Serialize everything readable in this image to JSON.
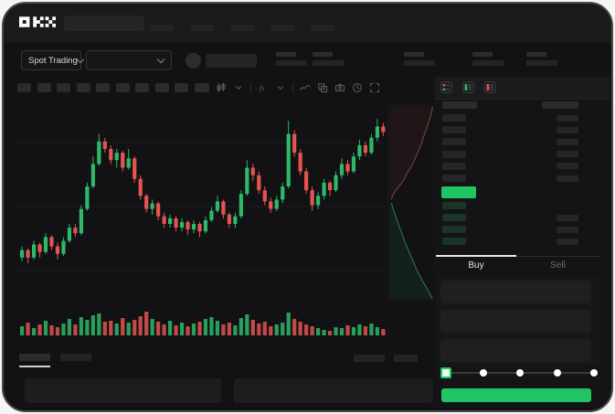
{
  "brand": {
    "name": "OKX"
  },
  "colors": {
    "up_green": "#2db969",
    "down_red": "#e25550",
    "accent_green": "#21c462",
    "bid_row_bg": "#1b3427",
    "ask_depth_line": "#7e4744",
    "bid_depth_line": "#2f7a5e"
  },
  "header": {
    "nav_items": 5
  },
  "subheader": {
    "market_selector_label": "Spot Trading",
    "stat_groups": 5
  },
  "chart_toolbar": {
    "timeframe_buttons": 10,
    "icons": [
      "candles",
      "chevron-down",
      "indicators",
      "chevron-down",
      "wave",
      "compare",
      "camera",
      "history",
      "fullscreen"
    ]
  },
  "chart_data": {
    "type": "candlestick",
    "title": "",
    "axes_labeled": false,
    "grid": "faint-horizontal",
    "price_scale": {
      "min": 0,
      "max": 100
    },
    "candles_format": [
      "open",
      "close",
      "high",
      "low",
      "volume"
    ],
    "candles": [
      [
        22,
        26,
        28,
        20,
        10
      ],
      [
        26,
        22,
        27,
        19,
        14
      ],
      [
        22,
        29,
        31,
        21,
        8
      ],
      [
        29,
        25,
        30,
        22,
        12
      ],
      [
        25,
        33,
        35,
        24,
        16
      ],
      [
        33,
        28,
        34,
        26,
        11
      ],
      [
        28,
        24,
        30,
        21,
        9
      ],
      [
        24,
        31,
        33,
        23,
        13
      ],
      [
        31,
        38,
        40,
        30,
        18
      ],
      [
        38,
        35,
        40,
        33,
        12
      ],
      [
        35,
        48,
        50,
        34,
        20
      ],
      [
        48,
        60,
        62,
        47,
        17
      ],
      [
        60,
        72,
        76,
        59,
        22
      ],
      [
        72,
        84,
        88,
        71,
        24
      ],
      [
        84,
        80,
        86,
        78,
        15
      ],
      [
        80,
        74,
        82,
        72,
        16
      ],
      [
        74,
        78,
        80,
        70,
        13
      ],
      [
        78,
        70,
        79,
        68,
        19
      ],
      [
        70,
        75,
        80,
        69,
        14
      ],
      [
        75,
        64,
        76,
        62,
        17
      ],
      [
        64,
        55,
        66,
        53,
        21
      ],
      [
        55,
        48,
        56,
        46,
        26
      ],
      [
        48,
        51,
        53,
        45,
        18
      ],
      [
        51,
        44,
        52,
        42,
        15
      ],
      [
        44,
        40,
        46,
        38,
        12
      ],
      [
        40,
        43,
        45,
        38,
        16
      ],
      [
        43,
        38,
        44,
        36,
        11
      ],
      [
        38,
        41,
        43,
        36,
        14
      ],
      [
        41,
        37,
        42,
        34,
        10
      ],
      [
        37,
        40,
        42,
        35,
        13
      ],
      [
        40,
        36,
        41,
        33,
        15
      ],
      [
        36,
        42,
        44,
        35,
        18
      ],
      [
        42,
        47,
        49,
        41,
        20
      ],
      [
        47,
        52,
        55,
        46,
        16
      ],
      [
        52,
        45,
        53,
        43,
        12
      ],
      [
        45,
        40,
        46,
        38,
        14
      ],
      [
        40,
        44,
        46,
        38,
        11
      ],
      [
        44,
        56,
        58,
        43,
        19
      ],
      [
        56,
        70,
        74,
        55,
        23
      ],
      [
        70,
        66,
        72,
        63,
        17
      ],
      [
        66,
        58,
        68,
        56,
        13
      ],
      [
        58,
        52,
        60,
        50,
        15
      ],
      [
        52,
        48,
        54,
        46,
        10
      ],
      [
        48,
        53,
        55,
        47,
        12
      ],
      [
        53,
        60,
        62,
        51,
        14
      ],
      [
        60,
        88,
        95,
        59,
        25
      ],
      [
        88,
        78,
        90,
        76,
        18
      ],
      [
        78,
        68,
        80,
        66,
        15
      ],
      [
        68,
        58,
        70,
        56,
        12
      ],
      [
        58,
        50,
        60,
        47,
        10
      ],
      [
        50,
        55,
        57,
        48,
        8
      ],
      [
        55,
        62,
        64,
        53,
        6
      ],
      [
        62,
        58,
        63,
        55,
        5
      ],
      [
        58,
        66,
        68,
        57,
        9
      ],
      [
        66,
        72,
        75,
        64,
        8
      ],
      [
        72,
        68,
        74,
        66,
        11
      ],
      [
        68,
        76,
        78,
        67,
        9
      ],
      [
        76,
        82,
        85,
        74,
        12
      ],
      [
        82,
        78,
        84,
        76,
        10
      ],
      [
        78,
        86,
        88,
        77,
        13
      ],
      [
        86,
        92,
        96,
        84,
        9
      ],
      [
        92,
        89,
        94,
        87,
        7
      ]
    ],
    "depth": {
      "asks": [
        [
          0.97,
          0.0
        ],
        [
          0.92,
          0.05
        ],
        [
          0.86,
          0.09
        ],
        [
          0.8,
          0.13
        ],
        [
          0.74,
          0.17
        ],
        [
          0.7,
          0.2
        ],
        [
          0.62,
          0.24
        ],
        [
          0.55,
          0.28
        ],
        [
          0.48,
          0.31
        ],
        [
          0.4,
          0.34
        ],
        [
          0.33,
          0.37
        ],
        [
          0.25,
          0.4
        ],
        [
          0.14,
          0.43
        ],
        [
          0.06,
          0.46
        ],
        [
          0.03,
          0.48
        ]
      ],
      "bids": [
        [
          0.03,
          0.5
        ],
        [
          0.08,
          0.54
        ],
        [
          0.14,
          0.58
        ],
        [
          0.2,
          0.62
        ],
        [
          0.27,
          0.66
        ],
        [
          0.33,
          0.7
        ],
        [
          0.4,
          0.74
        ],
        [
          0.48,
          0.78
        ],
        [
          0.55,
          0.82
        ],
        [
          0.63,
          0.86
        ],
        [
          0.72,
          0.9
        ],
        [
          0.82,
          0.94
        ],
        [
          0.9,
          0.97
        ],
        [
          0.96,
          1.0
        ]
      ]
    }
  },
  "order_book": {
    "view_icons": [
      "orderbook-split",
      "orderbook-bids",
      "orderbook-asks"
    ],
    "ask_rows": 6,
    "bid_rows": 4,
    "bid_right_bars": [
      false,
      true,
      true,
      true
    ],
    "last_price_direction": "up"
  },
  "trade_panel": {
    "buy_tab": "Buy",
    "sell_tab": "Sell",
    "active_tab": "Buy",
    "inputs": 3,
    "slider": {
      "stops": 5,
      "active_stop": 0
    }
  },
  "bottom_bar": {
    "tabs": 2,
    "right_buttons": 2,
    "panels": 2
  }
}
